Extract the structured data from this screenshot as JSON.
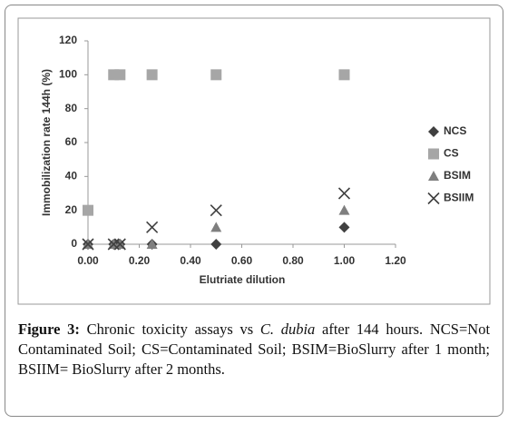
{
  "chart_data": {
    "type": "scatter",
    "x_label": "Elutriate dilution",
    "y_label": "Immobilization rate 144h (%)",
    "x": [
      0,
      0.1,
      0.125,
      0.25,
      0.5,
      1
    ],
    "series": [
      {
        "name": "NCS",
        "color": "#404040",
        "marker": "diamond",
        "values": [
          0,
          0,
          0,
          0,
          0,
          10
        ]
      },
      {
        "name": "CS",
        "color": "#a6a6a6",
        "marker": "square",
        "values": [
          20,
          100,
          100,
          100,
          100,
          100
        ]
      },
      {
        "name": "BSIM",
        "color": "#7f7f7f",
        "marker": "triangle",
        "values": [
          0,
          0,
          0,
          0,
          10,
          20
        ]
      },
      {
        "name": "BSIIM",
        "color": "#404040",
        "marker": "x",
        "values": [
          0,
          0,
          0,
          10,
          20,
          30
        ]
      }
    ],
    "xlim": [
      0,
      1.2
    ],
    "xticks": [
      {
        "value": 0,
        "label": "0.00"
      },
      {
        "value": 0.2,
        "label": "0.20"
      },
      {
        "value": 0.4,
        "label": "0.40"
      },
      {
        "value": 0.6,
        "label": "0.60"
      },
      {
        "value": 0.8,
        "label": "0.80"
      },
      {
        "value": 1,
        "label": "1.00"
      },
      {
        "value": 1.2,
        "label": "1.20"
      }
    ],
    "ylim": [
      0,
      120
    ],
    "yticks": [
      0,
      20,
      40,
      60,
      80,
      100,
      120
    ],
    "grid": false,
    "legend": "right"
  },
  "caption": {
    "label": "Figure 3:",
    "text1": "Chronic toxicity assays vs",
    "species": "C. dubia",
    "text2": "after 144 hours. NCS=Not Contaminated Soil; CS=Contaminated Soil; BSIM=BioSlurry after 1 month; BSIIM= BioSlurry after 2 months."
  }
}
